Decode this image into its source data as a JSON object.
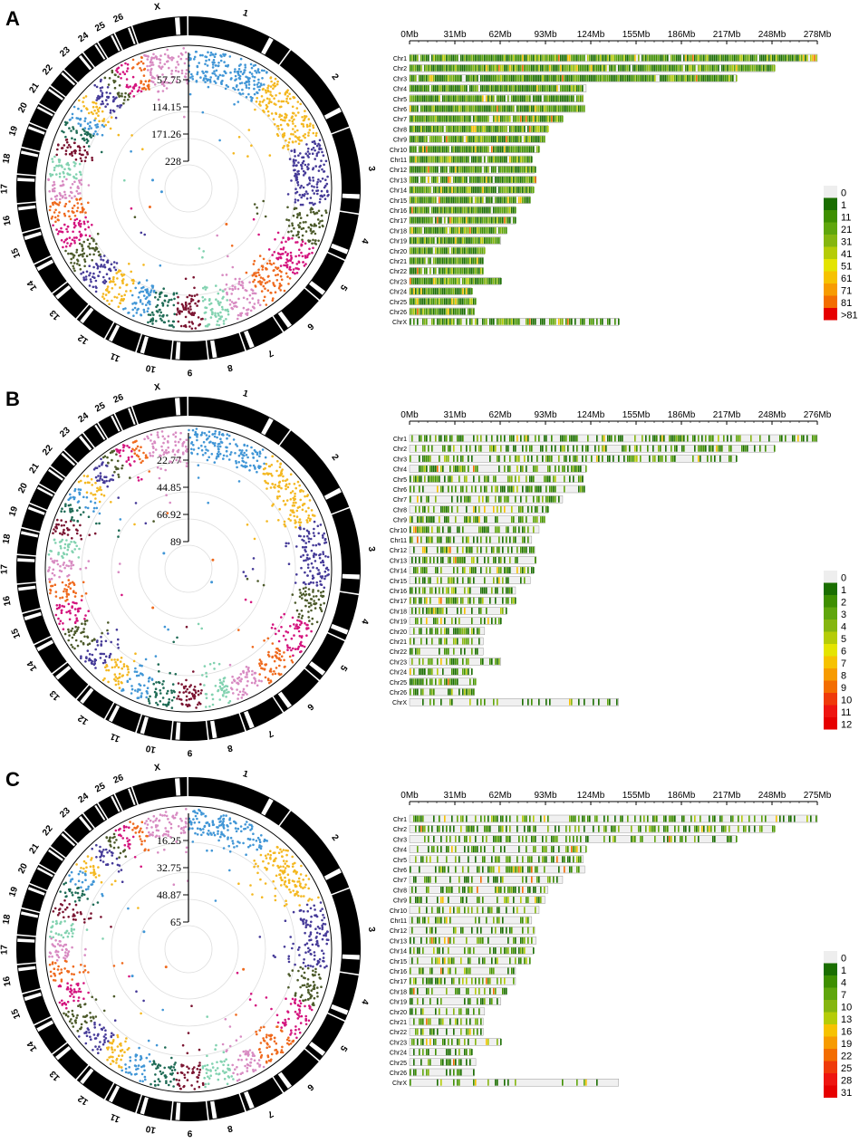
{
  "panels": [
    {
      "label": "A",
      "radial_ticks": [
        "57.75",
        "114.15",
        "171.26",
        "228"
      ],
      "mb_ticks": [
        "0Mb",
        "31Mb",
        "62Mb",
        "93Mb",
        "124Mb",
        "155Mb",
        "186Mb",
        "217Mb",
        "248Mb",
        "278Mb"
      ],
      "legend_labels": [
        "0",
        "1",
        "11",
        "21",
        "31",
        "41",
        "51",
        "61",
        "71",
        "81",
        ">81"
      ],
      "density": 0.95
    },
    {
      "label": "B",
      "radial_ticks": [
        "22.77",
        "44.85",
        "66.92",
        "89"
      ],
      "mb_ticks": [
        "0Mb",
        "31Mb",
        "62Mb",
        "93Mb",
        "124Mb",
        "155Mb",
        "186Mb",
        "217Mb",
        "248Mb",
        "276Mb"
      ],
      "legend_labels": [
        "0",
        "1",
        "2",
        "3",
        "4",
        "5",
        "6",
        "7",
        "8",
        "9",
        "10",
        "11",
        "12"
      ],
      "density": 0.45
    },
    {
      "label": "C",
      "radial_ticks": [
        "16.25",
        "32.75",
        "48.87",
        "65"
      ],
      "mb_ticks": [
        "0Mb",
        "31Mb",
        "62Mb",
        "93Mb",
        "124Mb",
        "155Mb",
        "186Mb",
        "217Mb",
        "248Mb",
        "275Mb"
      ],
      "legend_labels": [
        "0",
        "1",
        "4",
        "7",
        "10",
        "13",
        "16",
        "19",
        "22",
        "25",
        "28",
        "31"
      ],
      "density": 0.4
    }
  ],
  "chromosomes": [
    "Chr1",
    "Chr2",
    "Chr3",
    "Chr4",
    "Chr5",
    "Chr6",
    "Chr7",
    "Chr8",
    "Chr9",
    "Chr10",
    "Chr11",
    "Chr12",
    "Chr13",
    "Chr14",
    "Chr15",
    "Chr16",
    "Chr17",
    "Chr18",
    "Chr19",
    "Chr20",
    "Chr21",
    "Chr22",
    "Chr23",
    "Chr24",
    "Chr25",
    "Chr26",
    "ChrX"
  ],
  "ideogram_labels": [
    "1",
    "2",
    "3",
    "4",
    "5",
    "6",
    "7",
    "8",
    "9",
    "10",
    "11",
    "12",
    "13",
    "14",
    "15",
    "16",
    "17",
    "18",
    "19",
    "20",
    "21",
    "22",
    "23",
    "24",
    "25",
    "26",
    "X"
  ],
  "chart_data": {
    "type": "heatmap",
    "chromosome_lengths_mb": [
      277,
      248,
      222,
      120,
      118,
      119,
      104,
      94,
      92,
      88,
      83,
      85,
      86,
      84,
      82,
      72,
      72,
      66,
      62,
      51,
      50,
      50,
      62,
      42,
      45,
      44,
      142
    ],
    "legend_colors": [
      "#eeeeee",
      "#1a6e00",
      "#3e8f00",
      "#5fa60c",
      "#85b60f",
      "#b5cc07",
      "#e4e400",
      "#f6c200",
      "#f79b00",
      "#f36d00",
      "#ef3a0a",
      "#ee1510",
      "#e60000"
    ],
    "circos_colors": [
      "#4196d6",
      "#f4b821",
      "#453a98",
      "#4c5a2a",
      "#d4147e",
      "#ef6a1e",
      "#d88bc2",
      "#82d2b0",
      "#7a1330",
      "#1e6b55",
      "#4196d6",
      "#f4b821",
      "#453a98",
      "#4c5a2a",
      "#d4147e",
      "#ef6a1e",
      "#d88bc2",
      "#82d2b0",
      "#7a1330",
      "#1e6b55",
      "#4196d6",
      "#f4b821",
      "#453a98",
      "#4c5a2a",
      "#d4147e",
      "#ef6a1e",
      "#d88bc2"
    ]
  }
}
